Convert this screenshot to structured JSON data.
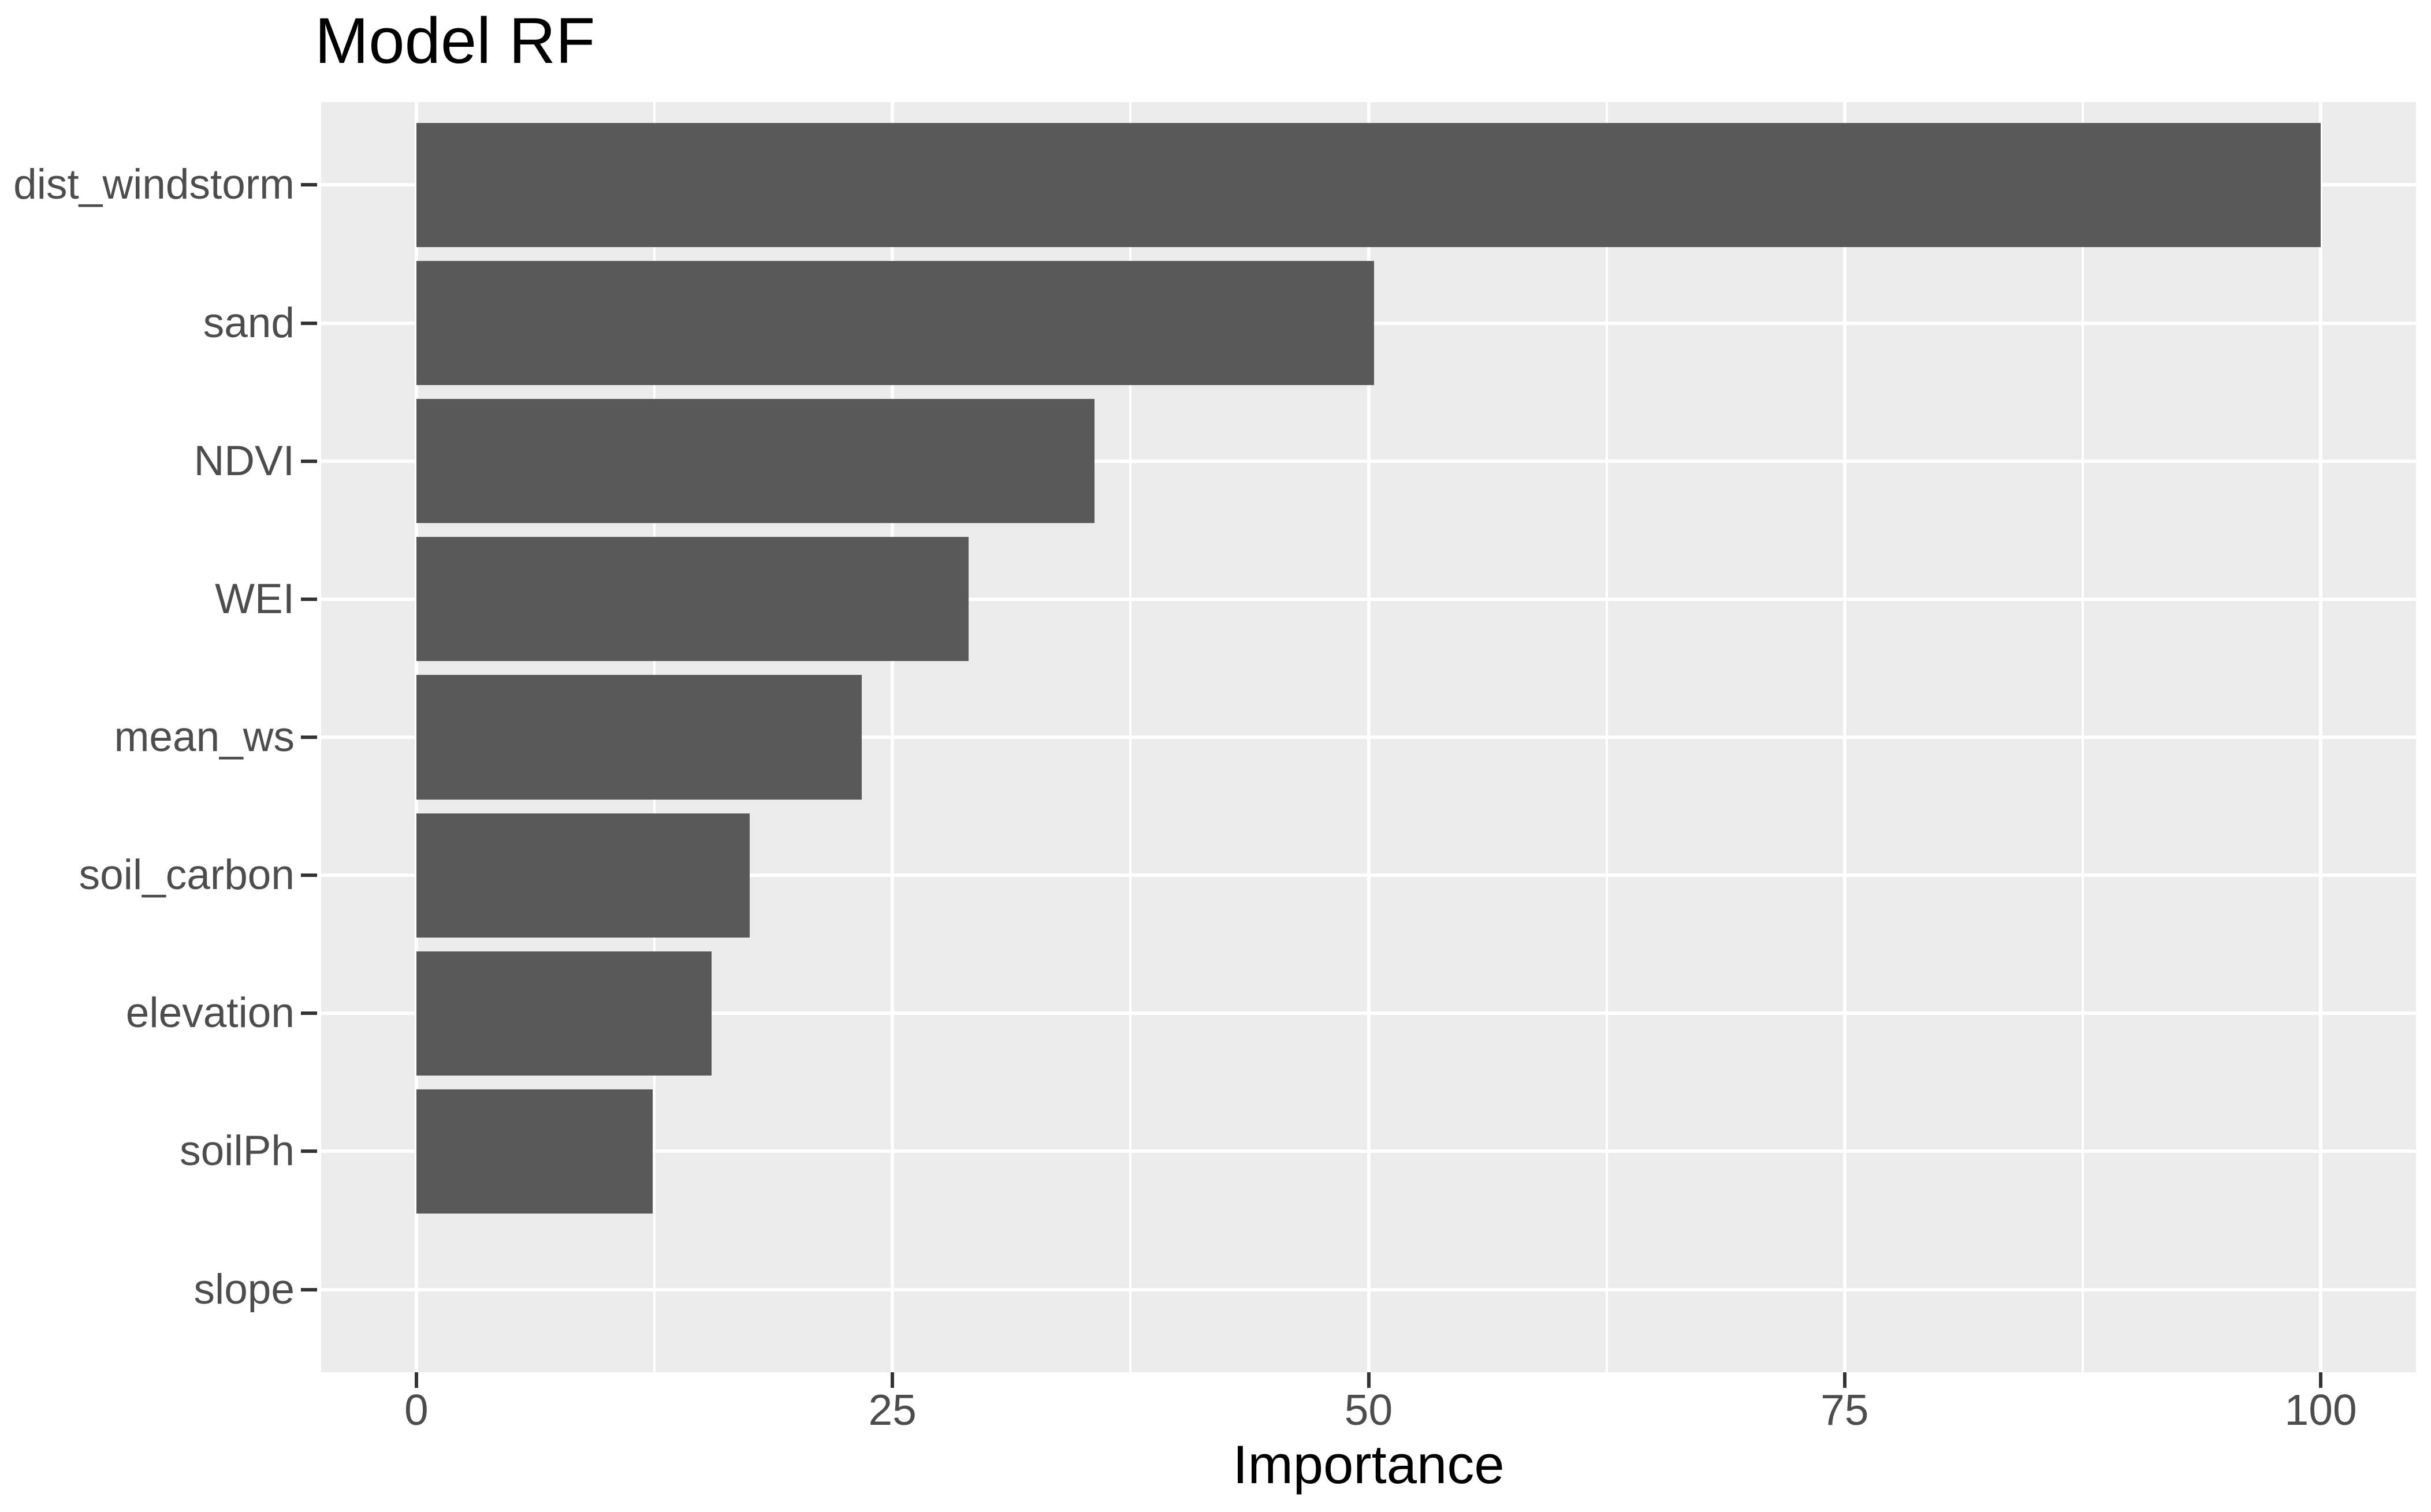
{
  "title": "Model RF",
  "colors": {
    "bar": "#595959",
    "panel_background": "#EBEBEB",
    "gridline": "#FFFFFF",
    "axis_text": "#4D4D4D",
    "tick_mark": "#333333",
    "title_text": "#000000"
  },
  "chart_data": {
    "type": "bar",
    "orientation": "horizontal",
    "title": "Model RF",
    "xlabel": "Importance",
    "ylabel": "",
    "categories": [
      "dist_windstorm",
      "sand",
      "NDVI",
      "WEI",
      "mean_ws",
      "soil_carbon",
      "elevation",
      "soilPh",
      "slope"
    ],
    "values": [
      100.0,
      50.3,
      35.6,
      29.0,
      23.4,
      17.5,
      15.5,
      12.4,
      0.0
    ],
    "xlim": [
      0,
      100
    ],
    "x_major_ticks": [
      0,
      25,
      50,
      75,
      100
    ],
    "x_minor_ticks": [
      12.5,
      37.5,
      62.5,
      87.5
    ],
    "x_tick_labels": [
      "0",
      "25",
      "50",
      "75",
      "100"
    ],
    "grid": "on",
    "legend": "none",
    "bar_relative_width": 0.9
  }
}
